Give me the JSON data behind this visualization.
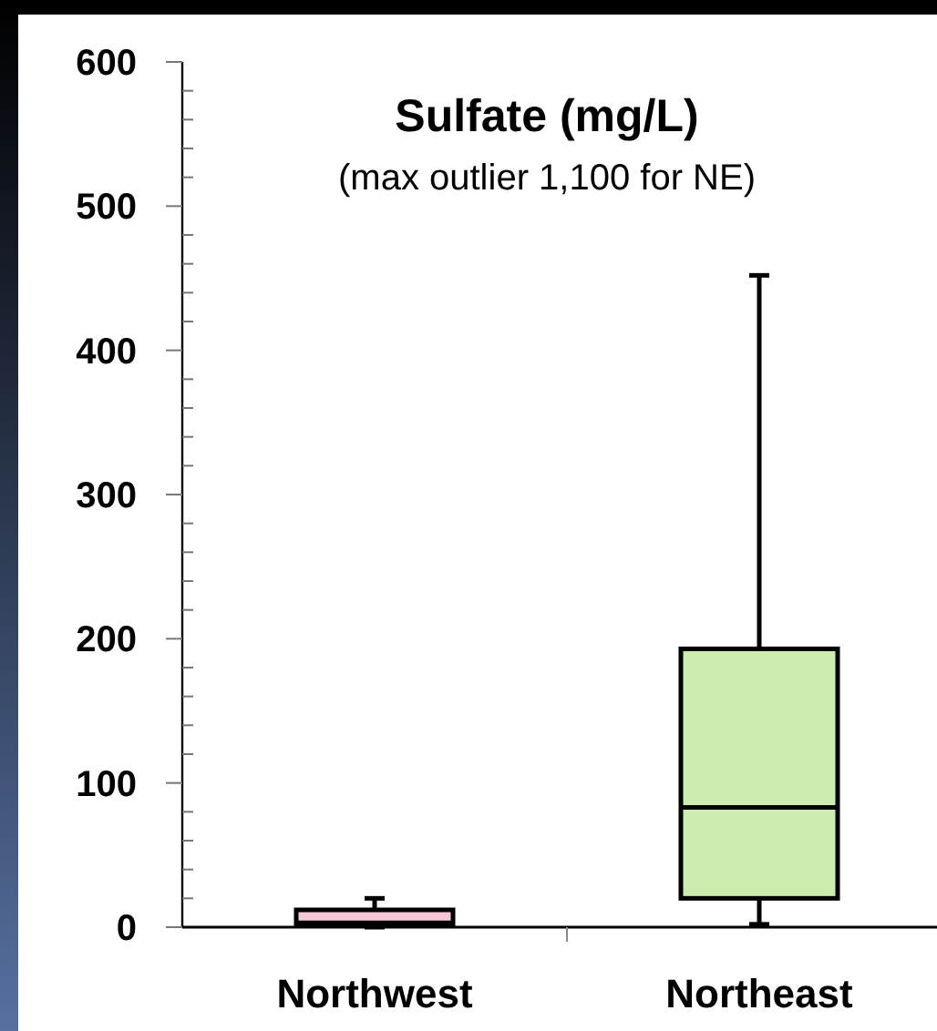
{
  "chart_data": {
    "type": "box",
    "title": "Sulfate (mg/L)",
    "subtitle": "(max outlier 1,100 for NE)",
    "categories": [
      "Northwest",
      "Northeast"
    ],
    "boxes": [
      {
        "low": 0,
        "q1": 1,
        "median": 3,
        "q3": 12,
        "high": 20
      },
      {
        "low": 2,
        "q1": 20,
        "median": 83,
        "q3": 193,
        "high": 452
      }
    ],
    "colors": [
      "#f9c6d8",
      "#ccecb0"
    ],
    "ylim": [
      0,
      600
    ],
    "yticks": [
      0,
      {
        "value": 20,
        "label": null
      },
      {
        "value": 40,
        "label": null
      },
      {
        "value": 60,
        "label": null
      },
      {
        "value": 80,
        "label": null
      },
      100,
      {
        "value": 120,
        "label": null
      },
      {
        "value": 140,
        "label": null
      },
      {
        "value": 160,
        "label": null
      },
      {
        "value": 180,
        "label": null
      },
      200,
      {
        "value": 220,
        "label": null
      },
      {
        "value": 240,
        "label": null
      },
      {
        "value": 260,
        "label": null
      },
      {
        "value": 280,
        "label": null
      },
      300,
      {
        "value": 320,
        "label": null
      },
      {
        "value": 340,
        "label": null
      },
      {
        "value": 360,
        "label": null
      },
      {
        "value": 380,
        "label": null
      },
      400,
      {
        "value": 420,
        "label": null
      },
      {
        "value": 440,
        "label": null
      },
      {
        "value": 460,
        "label": null
      },
      {
        "value": 480,
        "label": null
      },
      500,
      {
        "value": 520,
        "label": null
      },
      {
        "value": 540,
        "label": null
      },
      {
        "value": 560,
        "label": null
      },
      {
        "value": 580,
        "label": null
      },
      600
    ],
    "grid": false
  }
}
